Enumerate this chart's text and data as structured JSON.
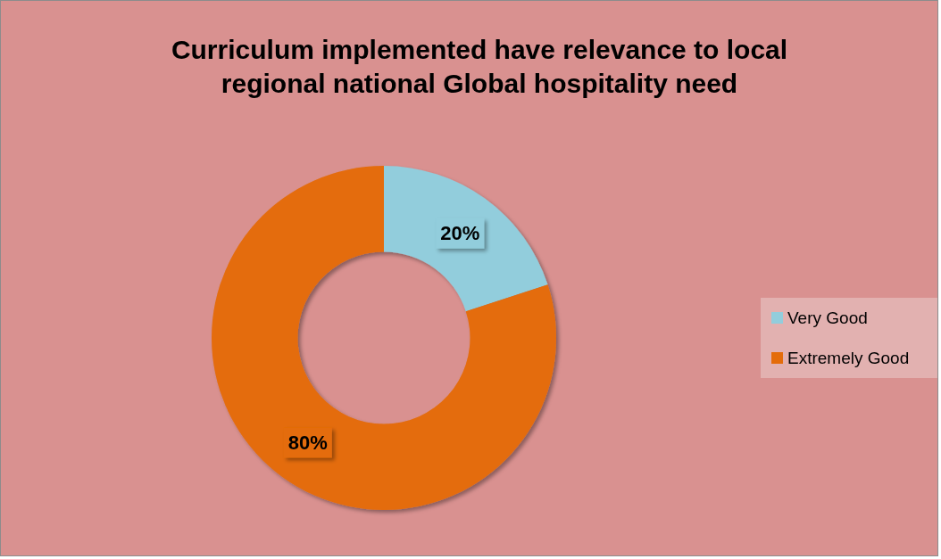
{
  "chart_data": {
    "type": "donut",
    "title": "Curriculum implemented have relevance to local regional national Global hospitality need",
    "categories": [
      "Very Good",
      "Extremely Good"
    ],
    "values": [
      20,
      80
    ],
    "colors": [
      "#92cddc",
      "#e46c0a"
    ],
    "value_labels": [
      "20%",
      "80%"
    ],
    "legend": "right"
  }
}
